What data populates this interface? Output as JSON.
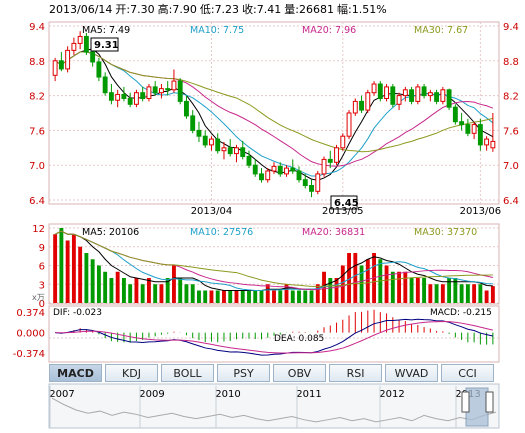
{
  "header": {
    "date": "2013/06/14",
    "open_label": "开:",
    "open": "7.30",
    "high_label": "高:",
    "high": "7.90",
    "low_label": "低:",
    "low": "7.23",
    "close_label": "收:",
    "close": "7.41",
    "volume_label": "量:",
    "volume": "26681",
    "change_label": "幅:",
    "change": "1.51%"
  },
  "price_panel": {
    "ma_legend": [
      {
        "label": "MA5: 7.49",
        "color": "#000000"
      },
      {
        "label": "MA10: 7.75",
        "color": "#1ea0c8"
      },
      {
        "label": "MA20: 7.96",
        "color": "#c8288c"
      },
      {
        "label": "MA30: 7.67",
        "color": "#8c9a1e"
      }
    ],
    "y_ticks": [
      "9.4",
      "8.8",
      "8.2",
      "7.6",
      "7.0",
      "6.4"
    ],
    "x_ticks": [
      "2013/04",
      "2013/05",
      "2013/06"
    ],
    "max_callout": "9.31",
    "min_callout": "6.45"
  },
  "volume_panel": {
    "ma_legend": [
      {
        "label": "MA5: 20106",
        "color": "#000000"
      },
      {
        "label": "MA10: 27576",
        "color": "#1ea0c8"
      },
      {
        "label": "MA20: 36831",
        "color": "#c8288c"
      },
      {
        "label": "MA30: 37370",
        "color": "#8c9a1e"
      }
    ],
    "y_ticks": [
      "12",
      "9",
      "6",
      "3",
      "0"
    ],
    "unit": "x万"
  },
  "macd_panel": {
    "dif_label": "DIF: -0.023",
    "dea_label": "DEA: 0.085",
    "macd_label": "MACD: -0.215",
    "y_ticks": [
      "0.374",
      "0.000",
      "-0.374"
    ]
  },
  "tabs": [
    "MACD",
    "KDJ",
    "BOLL",
    "PSY",
    "OBV",
    "RSI",
    "WVAD",
    "CCI"
  ],
  "active_tab": "MACD",
  "overview": {
    "years": [
      "2007",
      "2009",
      "2010",
      "2011",
      "2012",
      "2013"
    ]
  },
  "colors": {
    "up": "#e00000",
    "down": "#009900",
    "grid": "#e6c8c8",
    "axis_text": "#cc0000"
  },
  "chart_data": {
    "type": "candlestick",
    "title": "",
    "x_range": [
      "2013/02",
      "2013/06/14"
    ],
    "ylim": [
      6.4,
      9.4
    ],
    "candles": [
      {
        "o": 8.55,
        "h": 8.85,
        "l": 8.45,
        "c": 8.8
      },
      {
        "o": 8.8,
        "h": 8.95,
        "l": 8.62,
        "c": 8.66
      },
      {
        "o": 8.66,
        "h": 9.05,
        "l": 8.6,
        "c": 8.98
      },
      {
        "o": 8.98,
        "h": 9.2,
        "l": 8.9,
        "c": 9.1
      },
      {
        "o": 9.1,
        "h": 9.31,
        "l": 9.0,
        "c": 9.22
      },
      {
        "o": 9.22,
        "h": 9.28,
        "l": 8.9,
        "c": 8.95
      },
      {
        "o": 8.95,
        "h": 9.05,
        "l": 8.7,
        "c": 8.78
      },
      {
        "o": 8.78,
        "h": 8.85,
        "l": 8.45,
        "c": 8.52
      },
      {
        "o": 8.52,
        "h": 8.6,
        "l": 8.2,
        "c": 8.25
      },
      {
        "o": 8.25,
        "h": 8.4,
        "l": 8.05,
        "c": 8.12
      },
      {
        "o": 8.12,
        "h": 8.3,
        "l": 8.0,
        "c": 8.22
      },
      {
        "o": 8.22,
        "h": 8.35,
        "l": 8.1,
        "c": 8.15
      },
      {
        "o": 8.15,
        "h": 8.25,
        "l": 8.0,
        "c": 8.05
      },
      {
        "o": 8.05,
        "h": 8.3,
        "l": 8.0,
        "c": 8.25
      },
      {
        "o": 8.25,
        "h": 8.35,
        "l": 8.1,
        "c": 8.15
      },
      {
        "o": 8.15,
        "h": 8.4,
        "l": 8.1,
        "c": 8.35
      },
      {
        "o": 8.35,
        "h": 8.45,
        "l": 8.2,
        "c": 8.25
      },
      {
        "o": 8.25,
        "h": 8.4,
        "l": 8.15,
        "c": 8.32
      },
      {
        "o": 8.32,
        "h": 8.45,
        "l": 8.2,
        "c": 8.3
      },
      {
        "o": 8.3,
        "h": 8.65,
        "l": 8.25,
        "c": 8.45
      },
      {
        "o": 8.45,
        "h": 8.5,
        "l": 8.05,
        "c": 8.1
      },
      {
        "o": 8.1,
        "h": 8.2,
        "l": 7.8,
        "c": 7.85
      },
      {
        "o": 7.85,
        "h": 7.95,
        "l": 7.55,
        "c": 7.6
      },
      {
        "o": 7.6,
        "h": 7.75,
        "l": 7.4,
        "c": 7.5
      },
      {
        "o": 7.5,
        "h": 7.6,
        "l": 7.3,
        "c": 7.35
      },
      {
        "o": 7.35,
        "h": 7.5,
        "l": 7.25,
        "c": 7.45
      },
      {
        "o": 7.45,
        "h": 7.55,
        "l": 7.2,
        "c": 7.25
      },
      {
        "o": 7.25,
        "h": 7.4,
        "l": 7.1,
        "c": 7.3
      },
      {
        "o": 7.3,
        "h": 7.45,
        "l": 7.15,
        "c": 7.2
      },
      {
        "o": 7.2,
        "h": 7.35,
        "l": 7.05,
        "c": 7.3
      },
      {
        "o": 7.3,
        "h": 7.42,
        "l": 7.1,
        "c": 7.15
      },
      {
        "o": 7.15,
        "h": 7.25,
        "l": 6.95,
        "c": 7.0
      },
      {
        "o": 7.0,
        "h": 7.1,
        "l": 6.8,
        "c": 6.85
      },
      {
        "o": 6.85,
        "h": 6.95,
        "l": 6.7,
        "c": 6.75
      },
      {
        "o": 6.75,
        "h": 6.95,
        "l": 6.7,
        "c": 6.9
      },
      {
        "o": 6.9,
        "h": 7.05,
        "l": 6.85,
        "c": 6.98
      },
      {
        "o": 6.98,
        "h": 7.05,
        "l": 6.8,
        "c": 6.85
      },
      {
        "o": 6.85,
        "h": 7.0,
        "l": 6.8,
        "c": 6.95
      },
      {
        "o": 6.95,
        "h": 7.1,
        "l": 6.85,
        "c": 6.9
      },
      {
        "o": 6.9,
        "h": 6.98,
        "l": 6.7,
        "c": 6.75
      },
      {
        "o": 6.75,
        "h": 6.85,
        "l": 6.6,
        "c": 6.65
      },
      {
        "o": 6.65,
        "h": 6.75,
        "l": 6.45,
        "c": 6.55
      },
      {
        "o": 6.55,
        "h": 6.9,
        "l": 6.5,
        "c": 6.85
      },
      {
        "o": 6.85,
        "h": 7.15,
        "l": 6.8,
        "c": 7.1
      },
      {
        "o": 7.1,
        "h": 7.25,
        "l": 6.95,
        "c": 7.05
      },
      {
        "o": 7.05,
        "h": 7.35,
        "l": 7.0,
        "c": 7.3
      },
      {
        "o": 7.3,
        "h": 7.55,
        "l": 7.25,
        "c": 7.5
      },
      {
        "o": 7.5,
        "h": 7.95,
        "l": 7.45,
        "c": 7.9
      },
      {
        "o": 7.9,
        "h": 8.15,
        "l": 7.85,
        "c": 8.1
      },
      {
        "o": 8.1,
        "h": 8.2,
        "l": 7.9,
        "c": 7.95
      },
      {
        "o": 7.95,
        "h": 8.3,
        "l": 7.9,
        "c": 8.25
      },
      {
        "o": 8.25,
        "h": 8.45,
        "l": 8.2,
        "c": 8.4
      },
      {
        "o": 8.4,
        "h": 8.45,
        "l": 8.1,
        "c": 8.15
      },
      {
        "o": 8.15,
        "h": 8.4,
        "l": 8.1,
        "c": 8.35
      },
      {
        "o": 8.35,
        "h": 8.4,
        "l": 8.0,
        "c": 8.05
      },
      {
        "o": 8.05,
        "h": 8.25,
        "l": 7.95,
        "c": 8.2
      },
      {
        "o": 8.2,
        "h": 8.35,
        "l": 8.1,
        "c": 8.3
      },
      {
        "o": 8.3,
        "h": 8.35,
        "l": 8.05,
        "c": 8.1
      },
      {
        "o": 8.1,
        "h": 8.4,
        "l": 8.05,
        "c": 8.35
      },
      {
        "o": 8.35,
        "h": 8.4,
        "l": 8.15,
        "c": 8.2
      },
      {
        "o": 8.2,
        "h": 8.3,
        "l": 8.1,
        "c": 8.25
      },
      {
        "o": 8.25,
        "h": 8.3,
        "l": 8.05,
        "c": 8.1
      },
      {
        "o": 8.1,
        "h": 8.35,
        "l": 8.05,
        "c": 8.3
      },
      {
        "o": 8.3,
        "h": 8.32,
        "l": 7.95,
        "c": 8.0
      },
      {
        "o": 8.0,
        "h": 8.05,
        "l": 7.7,
        "c": 7.75
      },
      {
        "o": 7.75,
        "h": 7.9,
        "l": 7.6,
        "c": 7.7
      },
      {
        "o": 7.7,
        "h": 7.8,
        "l": 7.5,
        "c": 7.55
      },
      {
        "o": 7.55,
        "h": 7.75,
        "l": 7.45,
        "c": 7.7
      },
      {
        "o": 7.7,
        "h": 7.8,
        "l": 7.25,
        "c": 7.35
      },
      {
        "o": 7.35,
        "h": 7.5,
        "l": 7.25,
        "c": 7.45
      },
      {
        "o": 7.3,
        "h": 7.9,
        "l": 7.23,
        "c": 7.41
      }
    ],
    "volume": [
      11,
      12,
      10,
      11,
      9,
      8,
      7,
      6,
      5,
      4,
      5,
      4,
      3,
      4,
      3,
      4,
      3,
      3,
      4,
      6,
      4,
      3,
      3,
      2,
      2,
      2,
      2,
      2,
      2,
      2,
      2,
      2,
      2,
      2,
      3,
      2,
      2,
      3,
      2,
      2,
      2,
      2,
      3,
      5,
      4,
      4,
      6,
      8,
      8,
      6,
      7,
      8,
      7,
      6,
      5,
      5,
      5,
      4,
      4,
      4,
      3,
      3,
      3,
      4,
      4,
      3,
      3,
      3,
      3,
      2,
      2.7
    ],
    "macd": {
      "y_range": [
        -0.5,
        0.45
      ]
    },
    "overview_series": [
      4.2,
      3.6,
      3.1,
      2.8,
      3.0,
      2.6,
      2.9,
      2.7,
      2.4,
      2.6,
      2.8,
      2.5,
      2.3,
      2.5,
      2.7,
      2.4,
      2.6,
      2.3,
      2.1,
      2.3,
      2.5,
      2.2,
      2.0,
      2.2,
      2.4,
      2.1,
      2.3,
      2.0,
      2.2,
      2.4,
      2.1,
      2.6,
      2.3,
      2.1,
      2.4,
      2.2,
      2.6,
      2.9
    ]
  }
}
